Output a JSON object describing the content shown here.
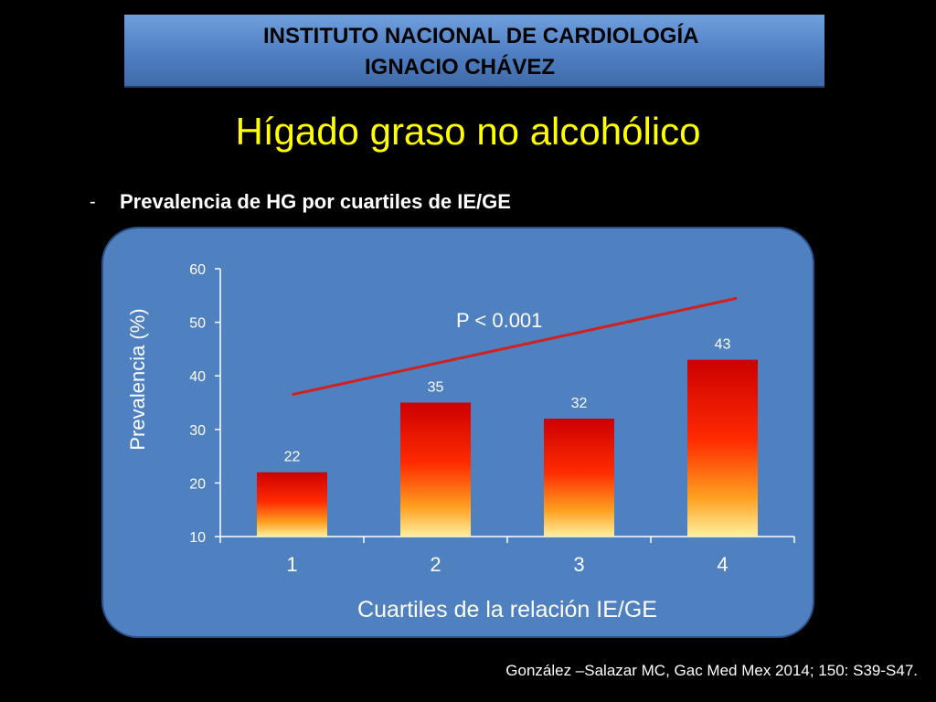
{
  "header": {
    "line1": "INSTITUTO NACIONAL DE CARDIOLOGÍA",
    "line2": "IGNACIO CHÁVEZ"
  },
  "slide": {
    "title": "Hígado graso no alcohólico",
    "bullet_marker": "-",
    "bullet": "Prevalencia de HG por cuartiles de IE/GE"
  },
  "chart_data": {
    "type": "bar",
    "categories": [
      "1",
      "2",
      "3",
      "4"
    ],
    "values": [
      22,
      35,
      32,
      43
    ],
    "data_labels": [
      "22",
      "35",
      "32",
      "43"
    ],
    "xlabel": "Cuartiles de la relación IE/GE",
    "ylabel": "Prevalencia (%)",
    "ylim": [
      10,
      60
    ],
    "yticks": [
      10,
      20,
      30,
      40,
      50,
      60
    ],
    "grid": false,
    "trend_line": {
      "label": "P < 0.001",
      "color": "#d02020",
      "from": 36.5,
      "to": 54.5
    },
    "bar_gradient": [
      "#cc0000",
      "#ff2a00",
      "#ffa020",
      "#fff0a0"
    ]
  },
  "citation": "González –Salazar MC, Gac Med Mex 2014; 150: S39-S47."
}
